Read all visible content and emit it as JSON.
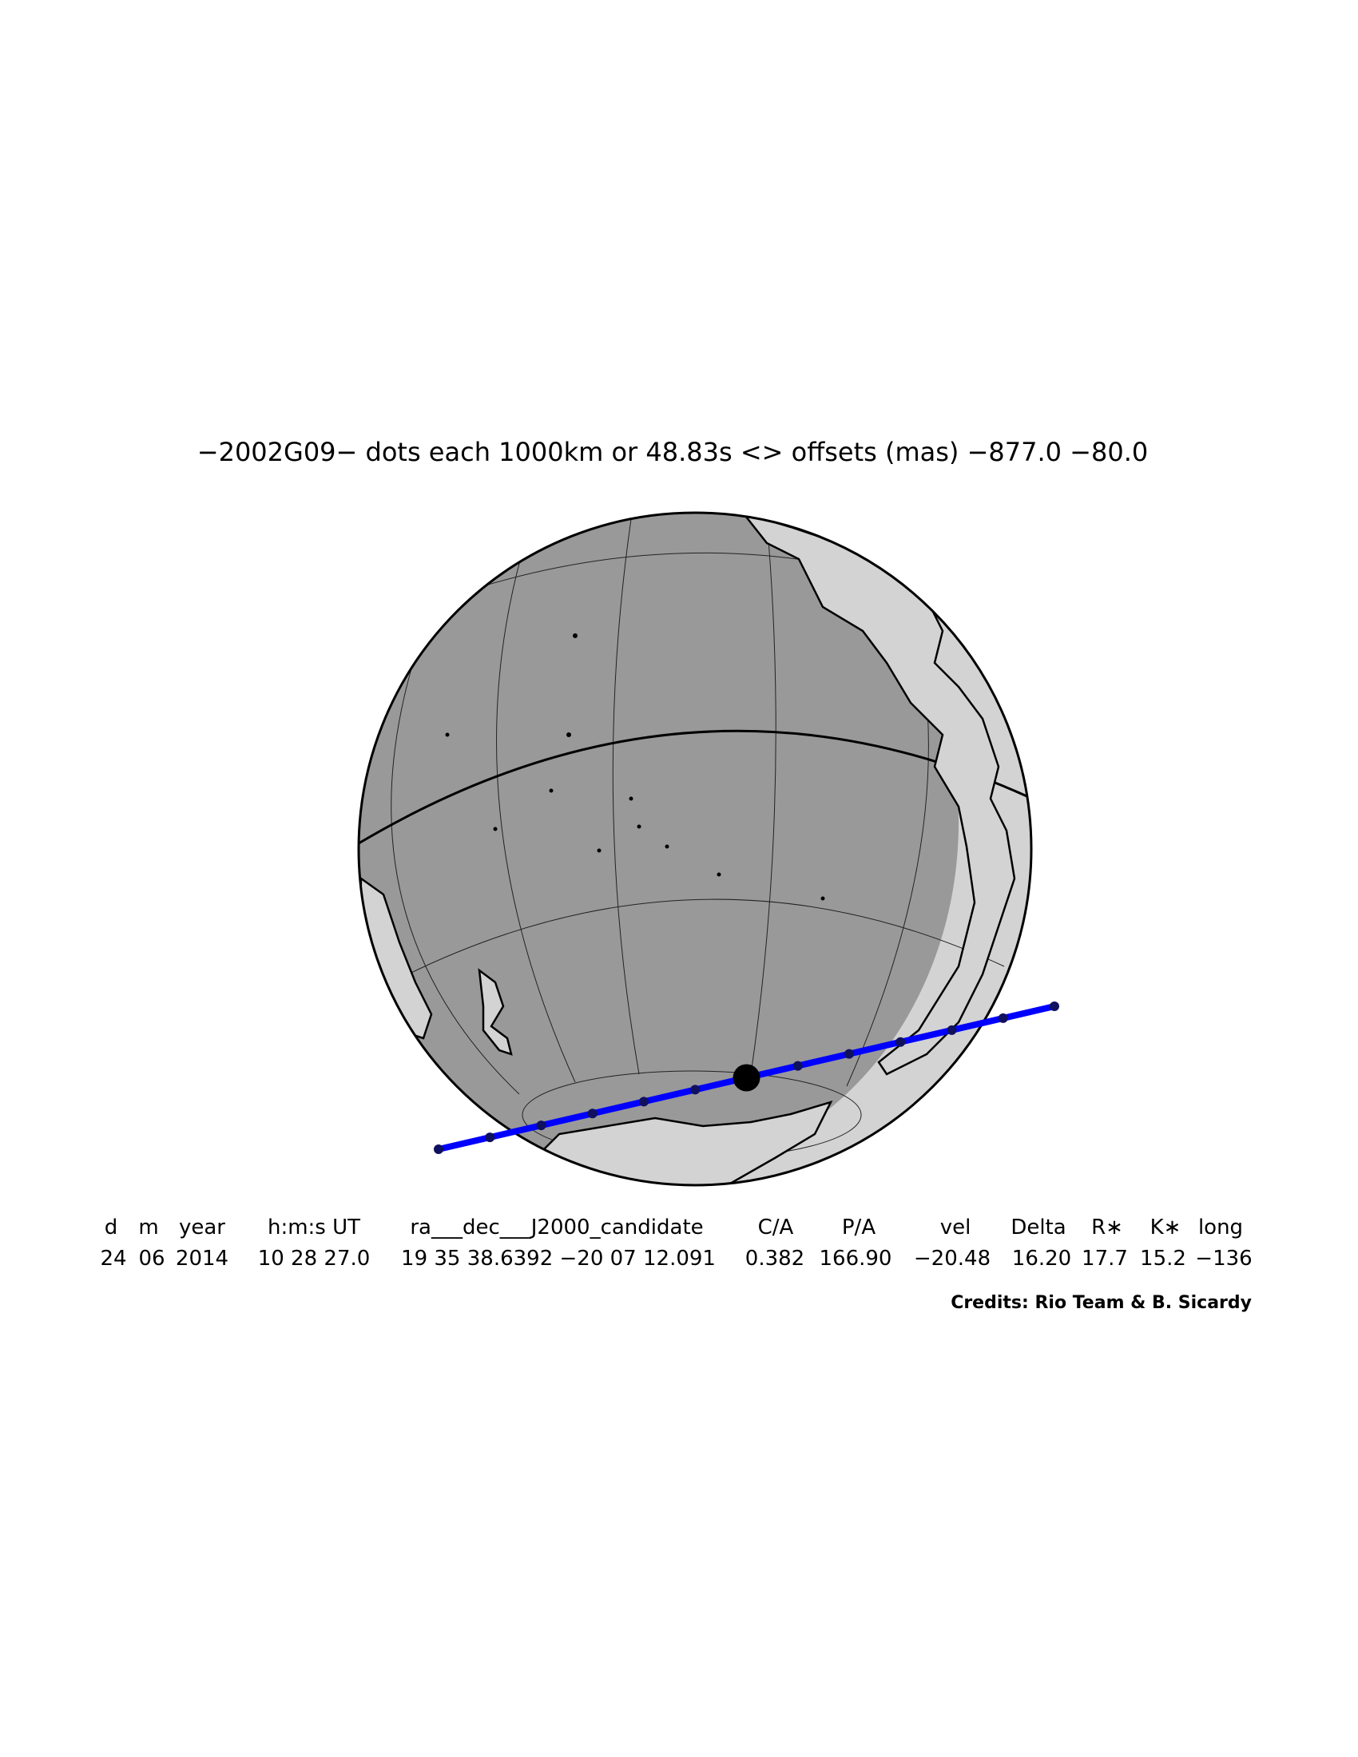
{
  "title": "−2002G09− dots each 1000km or 48.83s <> offsets (mas) −877.0  −80.0",
  "table": {
    "headers": [
      "d",
      "m",
      "year",
      "h:m:s UT",
      "ra___dec___J2000_candidate",
      "C/A",
      "P/A",
      "vel",
      "Delta",
      "R∗",
      "K∗",
      "long"
    ],
    "values": [
      "24",
      "06",
      "2014",
      "10 28 27.0",
      "19 35 38.6392 −20 07 12.091",
      "0.382",
      "166.90",
      "−20.48",
      "16.20",
      "17.7",
      "15.2",
      "−136"
    ]
  },
  "credits": "Credits: Rio Team & B. Sicardy",
  "globe": {
    "ocean_color": "#999999",
    "night_color": "#d3d3d3",
    "grid_color": "#333333"
  },
  "shadow_path": {
    "dot_count": 13,
    "center_dot_index": 6,
    "color": "#0000ff",
    "dot_color": "#000000"
  }
}
